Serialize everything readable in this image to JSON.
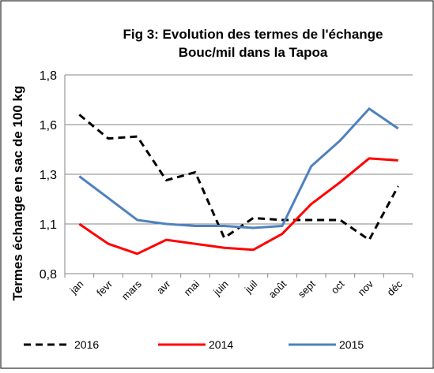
{
  "chart_data": {
    "type": "line",
    "title": [
      "Fig 3: Evolution des termes de l'échange",
      "Bouc/mil dans la Tapoa"
    ],
    "y_label": "Termes  échange en sac de 100 kg",
    "categories": [
      "jan",
      "fevr",
      "mars",
      "avr",
      "mai",
      "juin",
      "juil",
      "août",
      "sept",
      "oct",
      "nov",
      "déc"
    ],
    "series": [
      {
        "name": "2016",
        "color": "#000000",
        "dashed": true,
        "values": [
          1.6,
          1.48,
          1.49,
          1.27,
          1.31,
          0.98,
          1.08,
          1.07,
          1.07,
          1.07,
          0.97,
          1.24
        ]
      },
      {
        "name": "2014",
        "color": "#ff0000",
        "dashed": false,
        "values": [
          1.05,
          0.95,
          0.9,
          0.97,
          0.95,
          0.93,
          0.92,
          1.0,
          1.15,
          1.26,
          1.38,
          1.37
        ]
      },
      {
        "name": "2015",
        "color": "#4f81bd",
        "dashed": false,
        "values": [
          1.29,
          1.18,
          1.07,
          1.05,
          1.04,
          1.04,
          1.03,
          1.04,
          1.34,
          1.47,
          1.63,
          1.53
        ]
      }
    ],
    "ylim": [
      0.8,
      1.8
    ],
    "yticks": [
      {
        "value": 0.8,
        "label": "0,8"
      },
      {
        "value": 1.05,
        "label": "1,1"
      },
      {
        "value": 1.3,
        "label": "1,3"
      },
      {
        "value": 1.55,
        "label": "1,6"
      },
      {
        "value": 1.8,
        "label": "1,8"
      }
    ],
    "grid": true,
    "legend": "bottom"
  }
}
